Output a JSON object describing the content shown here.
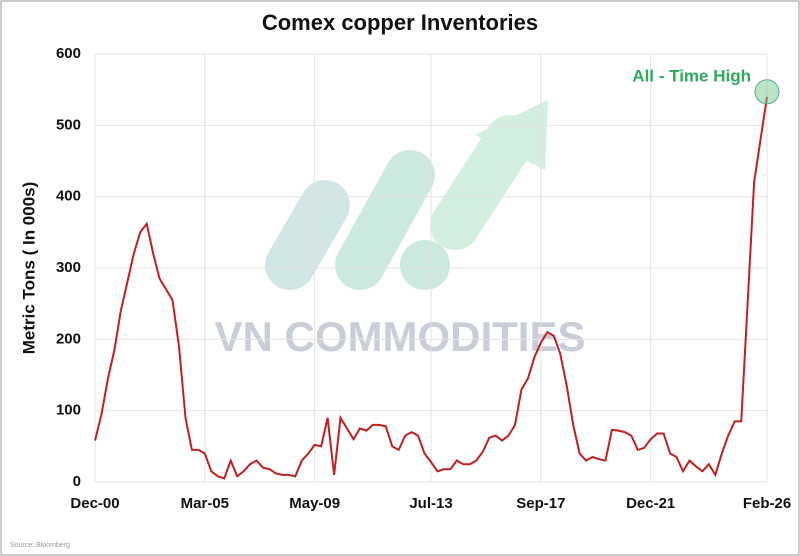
{
  "chart_data": {
    "type": "line",
    "title": "Comex copper Inventories",
    "y_label": "Metric Tons ( In 000s)",
    "annotation": "All - Time High",
    "watermark": "VN COMMODITIES",
    "source": "Source: Bloomberg",
    "categories": [
      "Dec-00",
      null,
      null,
      null,
      null,
      null,
      null,
      null,
      null,
      null,
      null,
      null,
      null,
      null,
      null,
      null,
      null,
      "Mar-05",
      null,
      null,
      null,
      null,
      null,
      null,
      null,
      null,
      null,
      null,
      null,
      null,
      null,
      null,
      null,
      null,
      "May-09",
      null,
      null,
      null,
      null,
      null,
      null,
      null,
      null,
      null,
      null,
      null,
      null,
      null,
      null,
      null,
      null,
      null,
      "Jul-13",
      null,
      null,
      null,
      null,
      null,
      null,
      null,
      null,
      null,
      null,
      null,
      null,
      null,
      null,
      null,
      null,
      "Sep-17",
      null,
      null,
      null,
      null,
      null,
      null,
      null,
      null,
      null,
      null,
      null,
      null,
      null,
      null,
      null,
      null,
      "Dec-21",
      null,
      null,
      null,
      null,
      null,
      null,
      null,
      null,
      null,
      null,
      null,
      null,
      null,
      null,
      null,
      null,
      null,
      "Feb-26"
    ],
    "series": [
      {
        "name": "Comex copper inventories",
        "color": "#c0201f",
        "values": [
          58,
          95,
          145,
          185,
          240,
          280,
          320,
          350,
          362,
          320,
          285,
          270,
          255,
          190,
          90,
          45,
          45,
          40,
          15,
          8,
          5,
          30,
          8,
          15,
          25,
          30,
          20,
          18,
          12,
          10,
          10,
          8,
          30,
          40,
          52,
          50,
          90,
          10,
          90,
          75,
          60,
          75,
          72,
          80,
          80,
          78,
          50,
          45,
          65,
          70,
          65,
          40,
          28,
          15,
          18,
          18,
          30,
          25,
          25,
          30,
          42,
          62,
          65,
          58,
          65,
          80,
          130,
          145,
          175,
          195,
          210,
          205,
          180,
          135,
          80,
          40,
          30,
          35,
          32,
          30,
          73,
          72,
          70,
          65,
          45,
          48,
          60,
          68,
          68,
          40,
          35,
          15,
          30,
          22,
          15,
          25,
          10,
          40,
          65,
          85,
          85,
          250,
          420,
          480,
          540
        ]
      }
    ],
    "ylim": [
      0,
      600
    ],
    "yticks": [
      0,
      100,
      200,
      300,
      400,
      500,
      600
    ],
    "grid": true
  }
}
